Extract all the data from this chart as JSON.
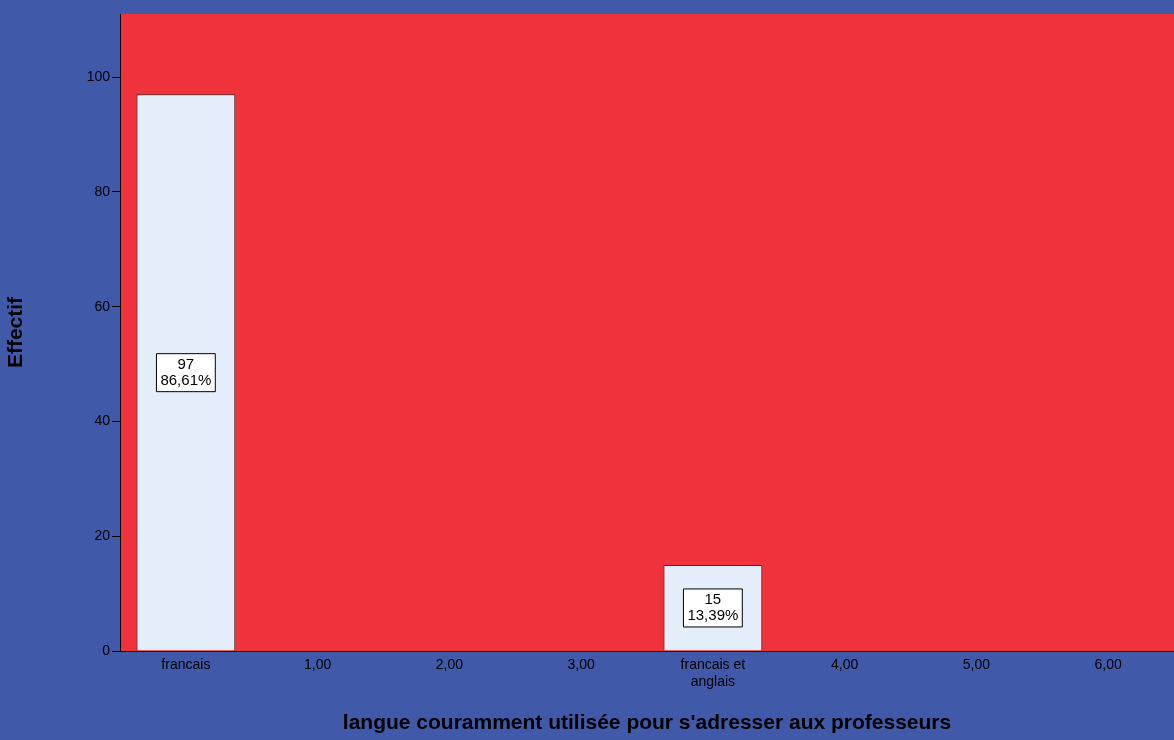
{
  "chart_data": {
    "type": "bar",
    "xlabel": "langue couramment utilisée pour s'adresser aux professeurs",
    "ylabel": "Effectif",
    "categories": [
      "francais",
      "1,00",
      "2,00",
      "3,00",
      "francais et\nanglais",
      "4,00",
      "5,00",
      "6,00"
    ],
    "values": [
      97,
      0,
      0,
      0,
      15,
      0,
      0,
      0
    ],
    "value_labels": [
      "97\n86,61%",
      null,
      null,
      null,
      "15\n13,39%",
      null,
      null,
      null
    ],
    "color": "#e3eefa",
    "ylim": [
      0,
      111
    ],
    "yticks": [
      0,
      20,
      40,
      60,
      80,
      100
    ],
    "grid": false,
    "legend": false
  }
}
